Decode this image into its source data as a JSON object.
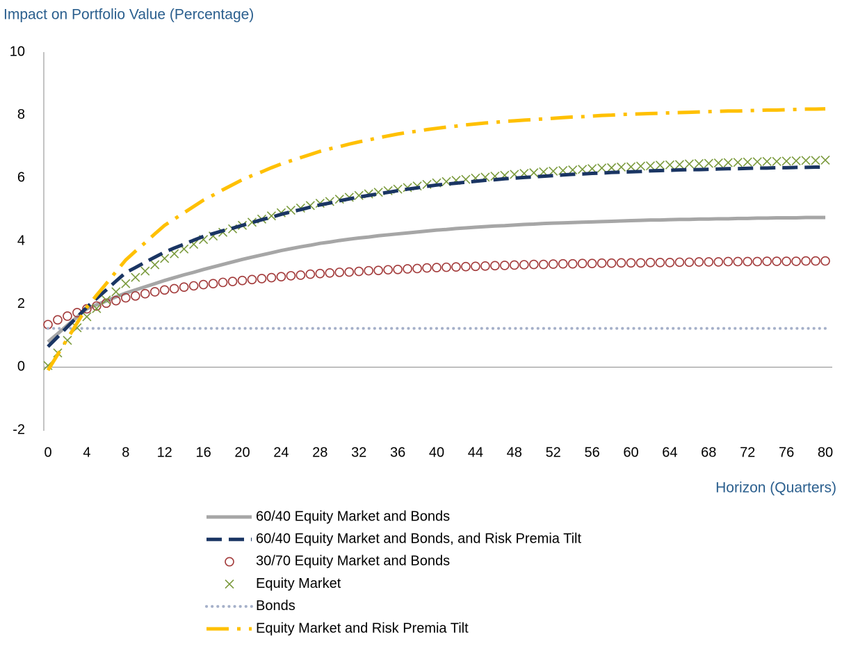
{
  "chart_data": {
    "type": "line",
    "title": "Impact on Portfolio Value (Percentage)",
    "x_label": "Horizon (Quarters)",
    "xlim": [
      0,
      80
    ],
    "ylim": [
      -2,
      10
    ],
    "xticks": [
      0,
      4,
      8,
      12,
      16,
      20,
      24,
      28,
      32,
      36,
      40,
      44,
      48,
      52,
      56,
      60,
      64,
      68,
      72,
      76,
      80
    ],
    "yticks": [
      -2,
      0,
      2,
      4,
      6,
      8,
      10
    ],
    "x": [
      0,
      1,
      2,
      3,
      4,
      5,
      6,
      7,
      8,
      9,
      10,
      11,
      12,
      13,
      14,
      15,
      16,
      17,
      18,
      19,
      20,
      21,
      22,
      23,
      24,
      25,
      26,
      27,
      28,
      29,
      30,
      31,
      32,
      33,
      34,
      35,
      36,
      37,
      38,
      39,
      40,
      41,
      42,
      43,
      44,
      45,
      46,
      47,
      48,
      49,
      50,
      51,
      52,
      53,
      54,
      55,
      56,
      57,
      58,
      59,
      60,
      61,
      62,
      63,
      64,
      65,
      66,
      67,
      68,
      69,
      70,
      71,
      72,
      73,
      74,
      75,
      76,
      77,
      78,
      79,
      80
    ],
    "series": [
      {
        "name": "60/40 Equity Market and Bonds",
        "color": "#a6a6a6",
        "style": "solid",
        "values": [
          0.8,
          1.06,
          1.33,
          1.59,
          1.85,
          1.98,
          2.1,
          2.23,
          2.35,
          2.45,
          2.55,
          2.65,
          2.75,
          2.84,
          2.93,
          3.01,
          3.1,
          3.18,
          3.26,
          3.34,
          3.42,
          3.49,
          3.56,
          3.63,
          3.7,
          3.76,
          3.82,
          3.87,
          3.93,
          3.97,
          4.02,
          4.06,
          4.1,
          4.13,
          4.17,
          4.2,
          4.23,
          4.26,
          4.29,
          4.32,
          4.35,
          4.37,
          4.4,
          4.42,
          4.44,
          4.46,
          4.48,
          4.49,
          4.51,
          4.53,
          4.54,
          4.56,
          4.57,
          4.58,
          4.59,
          4.6,
          4.61,
          4.62,
          4.63,
          4.64,
          4.65,
          4.66,
          4.67,
          4.67,
          4.68,
          4.69,
          4.69,
          4.7,
          4.7,
          4.71,
          4.71,
          4.72,
          4.72,
          4.73,
          4.73,
          4.74,
          4.74,
          4.74,
          4.75,
          4.75,
          4.75
        ]
      },
      {
        "name": "60/40 Equity Market and Bonds, and Risk Premia Tilt",
        "color": "#1a3563",
        "style": "dashed",
        "values": [
          0.65,
          0.96,
          1.28,
          1.59,
          1.9,
          2.18,
          2.45,
          2.73,
          3.0,
          3.16,
          3.33,
          3.49,
          3.65,
          3.78,
          3.9,
          4.03,
          4.15,
          4.24,
          4.33,
          4.41,
          4.5,
          4.59,
          4.68,
          4.76,
          4.85,
          4.93,
          5.0,
          5.08,
          5.15,
          5.21,
          5.28,
          5.34,
          5.4,
          5.45,
          5.5,
          5.55,
          5.6,
          5.65,
          5.69,
          5.74,
          5.78,
          5.81,
          5.84,
          5.87,
          5.9,
          5.93,
          5.95,
          5.98,
          6.0,
          6.02,
          6.04,
          6.06,
          6.08,
          6.1,
          6.12,
          6.13,
          6.15,
          6.16,
          6.18,
          6.19,
          6.2,
          6.21,
          6.23,
          6.24,
          6.25,
          6.26,
          6.27,
          6.27,
          6.28,
          6.29,
          6.3,
          6.3,
          6.31,
          6.32,
          6.32,
          6.33,
          6.33,
          6.34,
          6.34,
          6.35,
          6.35
        ]
      },
      {
        "name": "30/70 Equity Market and Bonds",
        "color": "#a33b3b",
        "style": "circle",
        "values": [
          1.35,
          1.5,
          1.62,
          1.73,
          1.85,
          1.94,
          2.03,
          2.11,
          2.2,
          2.26,
          2.33,
          2.39,
          2.45,
          2.49,
          2.54,
          2.58,
          2.62,
          2.65,
          2.69,
          2.72,
          2.75,
          2.78,
          2.81,
          2.84,
          2.87,
          2.9,
          2.92,
          2.95,
          2.97,
          2.99,
          3.01,
          3.02,
          3.04,
          3.06,
          3.07,
          3.09,
          3.1,
          3.12,
          3.13,
          3.15,
          3.16,
          3.17,
          3.18,
          3.19,
          3.2,
          3.21,
          3.22,
          3.23,
          3.24,
          3.25,
          3.26,
          3.26,
          3.27,
          3.28,
          3.28,
          3.29,
          3.29,
          3.3,
          3.3,
          3.31,
          3.31,
          3.31,
          3.32,
          3.32,
          3.32,
          3.33,
          3.33,
          3.34,
          3.34,
          3.34,
          3.35,
          3.35,
          3.35,
          3.35,
          3.36,
          3.36,
          3.36,
          3.36,
          3.37,
          3.37,
          3.37
        ]
      },
      {
        "name": "Equity Market",
        "color": "#7a9a3c",
        "style": "cross",
        "values": [
          0.05,
          0.45,
          0.85,
          1.25,
          1.6,
          1.86,
          2.13,
          2.39,
          2.65,
          2.85,
          3.05,
          3.25,
          3.45,
          3.6,
          3.75,
          3.9,
          4.05,
          4.16,
          4.28,
          4.39,
          4.5,
          4.6,
          4.7,
          4.8,
          4.9,
          4.98,
          5.05,
          5.13,
          5.2,
          5.26,
          5.33,
          5.39,
          5.45,
          5.5,
          5.55,
          5.6,
          5.65,
          5.7,
          5.75,
          5.8,
          5.85,
          5.89,
          5.93,
          5.96,
          6.0,
          6.03,
          6.06,
          6.09,
          6.12,
          6.15,
          6.17,
          6.2,
          6.22,
          6.24,
          6.26,
          6.28,
          6.3,
          6.32,
          6.33,
          6.35,
          6.36,
          6.38,
          6.39,
          6.41,
          6.42,
          6.43,
          6.45,
          6.46,
          6.47,
          6.48,
          6.49,
          6.5,
          6.51,
          6.52,
          6.53,
          6.53,
          6.54,
          6.55,
          6.56,
          6.56,
          6.57
        ]
      },
      {
        "name": "Bonds",
        "color": "#a5b0c9",
        "style": "dotted",
        "values": [
          1.23,
          1.23,
          1.23,
          1.23,
          1.23,
          1.23,
          1.23,
          1.23,
          1.23,
          1.23,
          1.23,
          1.23,
          1.23,
          1.23,
          1.23,
          1.23,
          1.23,
          1.23,
          1.23,
          1.23,
          1.23,
          1.23,
          1.23,
          1.23,
          1.23,
          1.23,
          1.23,
          1.23,
          1.23,
          1.23,
          1.23,
          1.23,
          1.23,
          1.23,
          1.23,
          1.23,
          1.23,
          1.23,
          1.23,
          1.23,
          1.23,
          1.23,
          1.23,
          1.23,
          1.23,
          1.23,
          1.23,
          1.23,
          1.23,
          1.23,
          1.23,
          1.23,
          1.23,
          1.23,
          1.23,
          1.23,
          1.23,
          1.23,
          1.23,
          1.23,
          1.23,
          1.23,
          1.23,
          1.23,
          1.23,
          1.23,
          1.23,
          1.23,
          1.23,
          1.23,
          1.23,
          1.23,
          1.23,
          1.23,
          1.23,
          1.23,
          1.23,
          1.23,
          1.23,
          1.23,
          1.23
        ]
      },
      {
        "name": "Equity Market and Risk Premia Tilt",
        "color": "#ffc000",
        "style": "dashdot",
        "values": [
          -0.1,
          0.4,
          0.9,
          1.4,
          1.9,
          2.28,
          2.65,
          3.03,
          3.4,
          3.68,
          3.95,
          4.23,
          4.5,
          4.7,
          4.9,
          5.1,
          5.3,
          5.46,
          5.63,
          5.79,
          5.95,
          6.08,
          6.2,
          6.33,
          6.45,
          6.55,
          6.65,
          6.75,
          6.85,
          6.93,
          7.0,
          7.08,
          7.15,
          7.21,
          7.28,
          7.34,
          7.4,
          7.45,
          7.49,
          7.54,
          7.58,
          7.62,
          7.65,
          7.69,
          7.72,
          7.75,
          7.77,
          7.8,
          7.82,
          7.84,
          7.86,
          7.88,
          7.9,
          7.92,
          7.94,
          7.95,
          7.97,
          7.99,
          8.0,
          8.02,
          8.03,
          8.04,
          8.05,
          8.06,
          8.07,
          8.08,
          8.09,
          8.1,
          8.11,
          8.12,
          8.13,
          8.13,
          8.14,
          8.15,
          8.16,
          8.16,
          8.17,
          8.18,
          8.19,
          8.19,
          8.2
        ]
      }
    ]
  }
}
